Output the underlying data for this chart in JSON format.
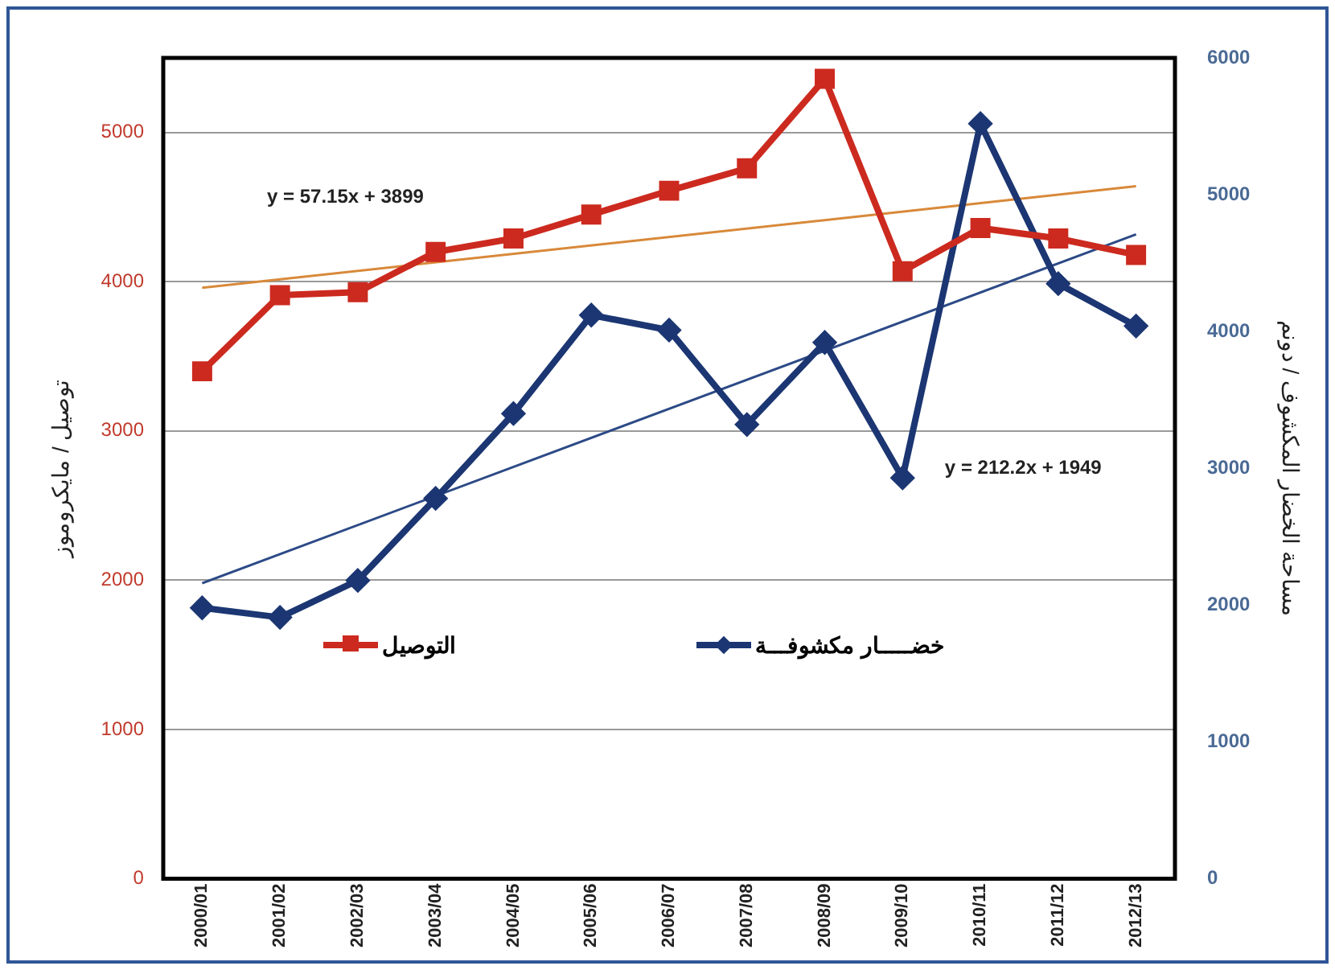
{
  "chart_data": {
    "type": "line",
    "ylabel": "توصيل / مايكروموز",
    "y2label": "مساحة الخضار المكشوف / دونم",
    "categories": [
      "2000/01",
      "2001/02",
      "2002/03",
      "2003/04",
      "2004/05",
      "2005/06",
      "2006/07",
      "2007/08",
      "2008/09",
      "2009/10",
      "2010/11",
      "2011/12",
      "2012/13"
    ],
    "series": [
      {
        "name": "التوصيل",
        "color": "#cc2a1f",
        "marker": "square",
        "values": [
          3400,
          3910,
          3930,
          4200,
          4290,
          4450,
          4610,
          4760,
          5360,
          4070,
          4360,
          4290,
          4180
        ]
      },
      {
        "name": "خضـــــار مكشوفـــة",
        "color": "#1b3672",
        "marker": "diamond",
        "axis": "y2",
        "values": [
          1980,
          1910,
          2180,
          2780,
          3400,
          4120,
          4010,
          3320,
          3920,
          2930,
          5520,
          4350,
          4040
        ]
      },
      {
        "type": "line",
        "color": "#d8893a",
        "marker": "none",
        "values": [
          3960,
          null,
          null,
          null,
          null,
          null,
          null,
          null,
          null,
          null,
          null,
          null,
          4640
        ]
      },
      {
        "type": "line",
        "color": "#2c4a86",
        "marker": "none",
        "axis": "y2",
        "values": [
          2160,
          null,
          null,
          null,
          null,
          null,
          null,
          null,
          null,
          null,
          null,
          null,
          4710
        ]
      }
    ],
    "ylim": [
      0,
      5500
    ],
    "yticks": [
      0,
      1000,
      2000,
      3000,
      4000,
      5000
    ],
    "y2lim": [
      0,
      6000
    ],
    "y2ticks": [
      0,
      1000,
      2000,
      3000,
      4000,
      5000,
      6000
    ],
    "grid": "y",
    "legend": "center left",
    "annotations": [
      "y = 57.15x + 3899",
      "y = 212.2x + 1949"
    ]
  }
}
